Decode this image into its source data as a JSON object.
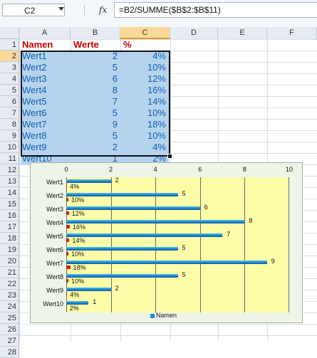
{
  "formula_bar": {
    "name_box": "C2",
    "fx_label": "fx",
    "formula": "=B2/SUMME($B$2:$B$11)"
  },
  "columns": [
    "A",
    "B",
    "C",
    "D",
    "E",
    "F"
  ],
  "selected_column": "C",
  "rows": [
    "1",
    "2",
    "3",
    "4",
    "5",
    "6",
    "7",
    "8",
    "9",
    "10",
    "11",
    "12",
    "13",
    "14",
    "15",
    "16",
    "17",
    "18",
    "19",
    "20",
    "21",
    "22",
    "23",
    "24",
    "25",
    "26",
    "27",
    "28"
  ],
  "table": {
    "headers": [
      "Namen",
      "Werte",
      "%"
    ],
    "rows": [
      {
        "name": "Wert1",
        "value": "2",
        "pct": "4%"
      },
      {
        "name": "Wert2",
        "value": "5",
        "pct": "10%"
      },
      {
        "name": "Wert3",
        "value": "6",
        "pct": "12%"
      },
      {
        "name": "Wert4",
        "value": "8",
        "pct": "16%"
      },
      {
        "name": "Wert5",
        "value": "7",
        "pct": "14%"
      },
      {
        "name": "Wert6",
        "value": "5",
        "pct": "10%"
      },
      {
        "name": "Wert7",
        "value": "9",
        "pct": "18%"
      },
      {
        "name": "Wert8",
        "value": "5",
        "pct": "10%"
      },
      {
        "name": "Wert9",
        "value": "2",
        "pct": "4%"
      },
      {
        "name": "Wert10",
        "value": "1",
        "pct": "2%"
      }
    ]
  },
  "colors": {
    "header_text": "#c00000",
    "cell_fill": "#b6d3ee",
    "cell_text": "#0c61b5",
    "plot_area": "#fdfca8",
    "chart_area": "#eef4e8",
    "series_values": "#1b7ec6",
    "series_percent": "#d51f1f"
  },
  "chart_data": {
    "type": "bar",
    "orientation": "horizontal",
    "categories": [
      "Wert1",
      "Wert2",
      "Wert3",
      "Wert4",
      "Wert5",
      "Wert6",
      "Wert7",
      "Wert8",
      "Wert9",
      "Wert10"
    ],
    "series": [
      {
        "name": "Namen",
        "values": [
          2,
          5,
          6,
          8,
          7,
          5,
          9,
          5,
          2,
          1
        ],
        "labels": [
          "2",
          "5",
          "6",
          "8",
          "7",
          "5",
          "9",
          "5",
          "2",
          "1"
        ]
      },
      {
        "values": [
          0.04,
          0.1,
          0.12,
          0.16,
          0.14,
          0.1,
          0.18,
          0.1,
          0.04,
          0.02
        ],
        "labels": [
          "4%",
          "10%",
          "12%",
          "16%",
          "14%",
          "10%",
          "18%",
          "10%",
          "4%",
          "2%"
        ]
      }
    ],
    "x_ticks": [
      "0",
      "2",
      "4",
      "6",
      "8",
      "10"
    ],
    "xlim": [
      0,
      10
    ],
    "x_axis_position": "top",
    "grid": true,
    "legend": {
      "position": "bottom",
      "entries": [
        "Namen"
      ]
    },
    "title": "",
    "xlabel": "",
    "ylabel": ""
  }
}
